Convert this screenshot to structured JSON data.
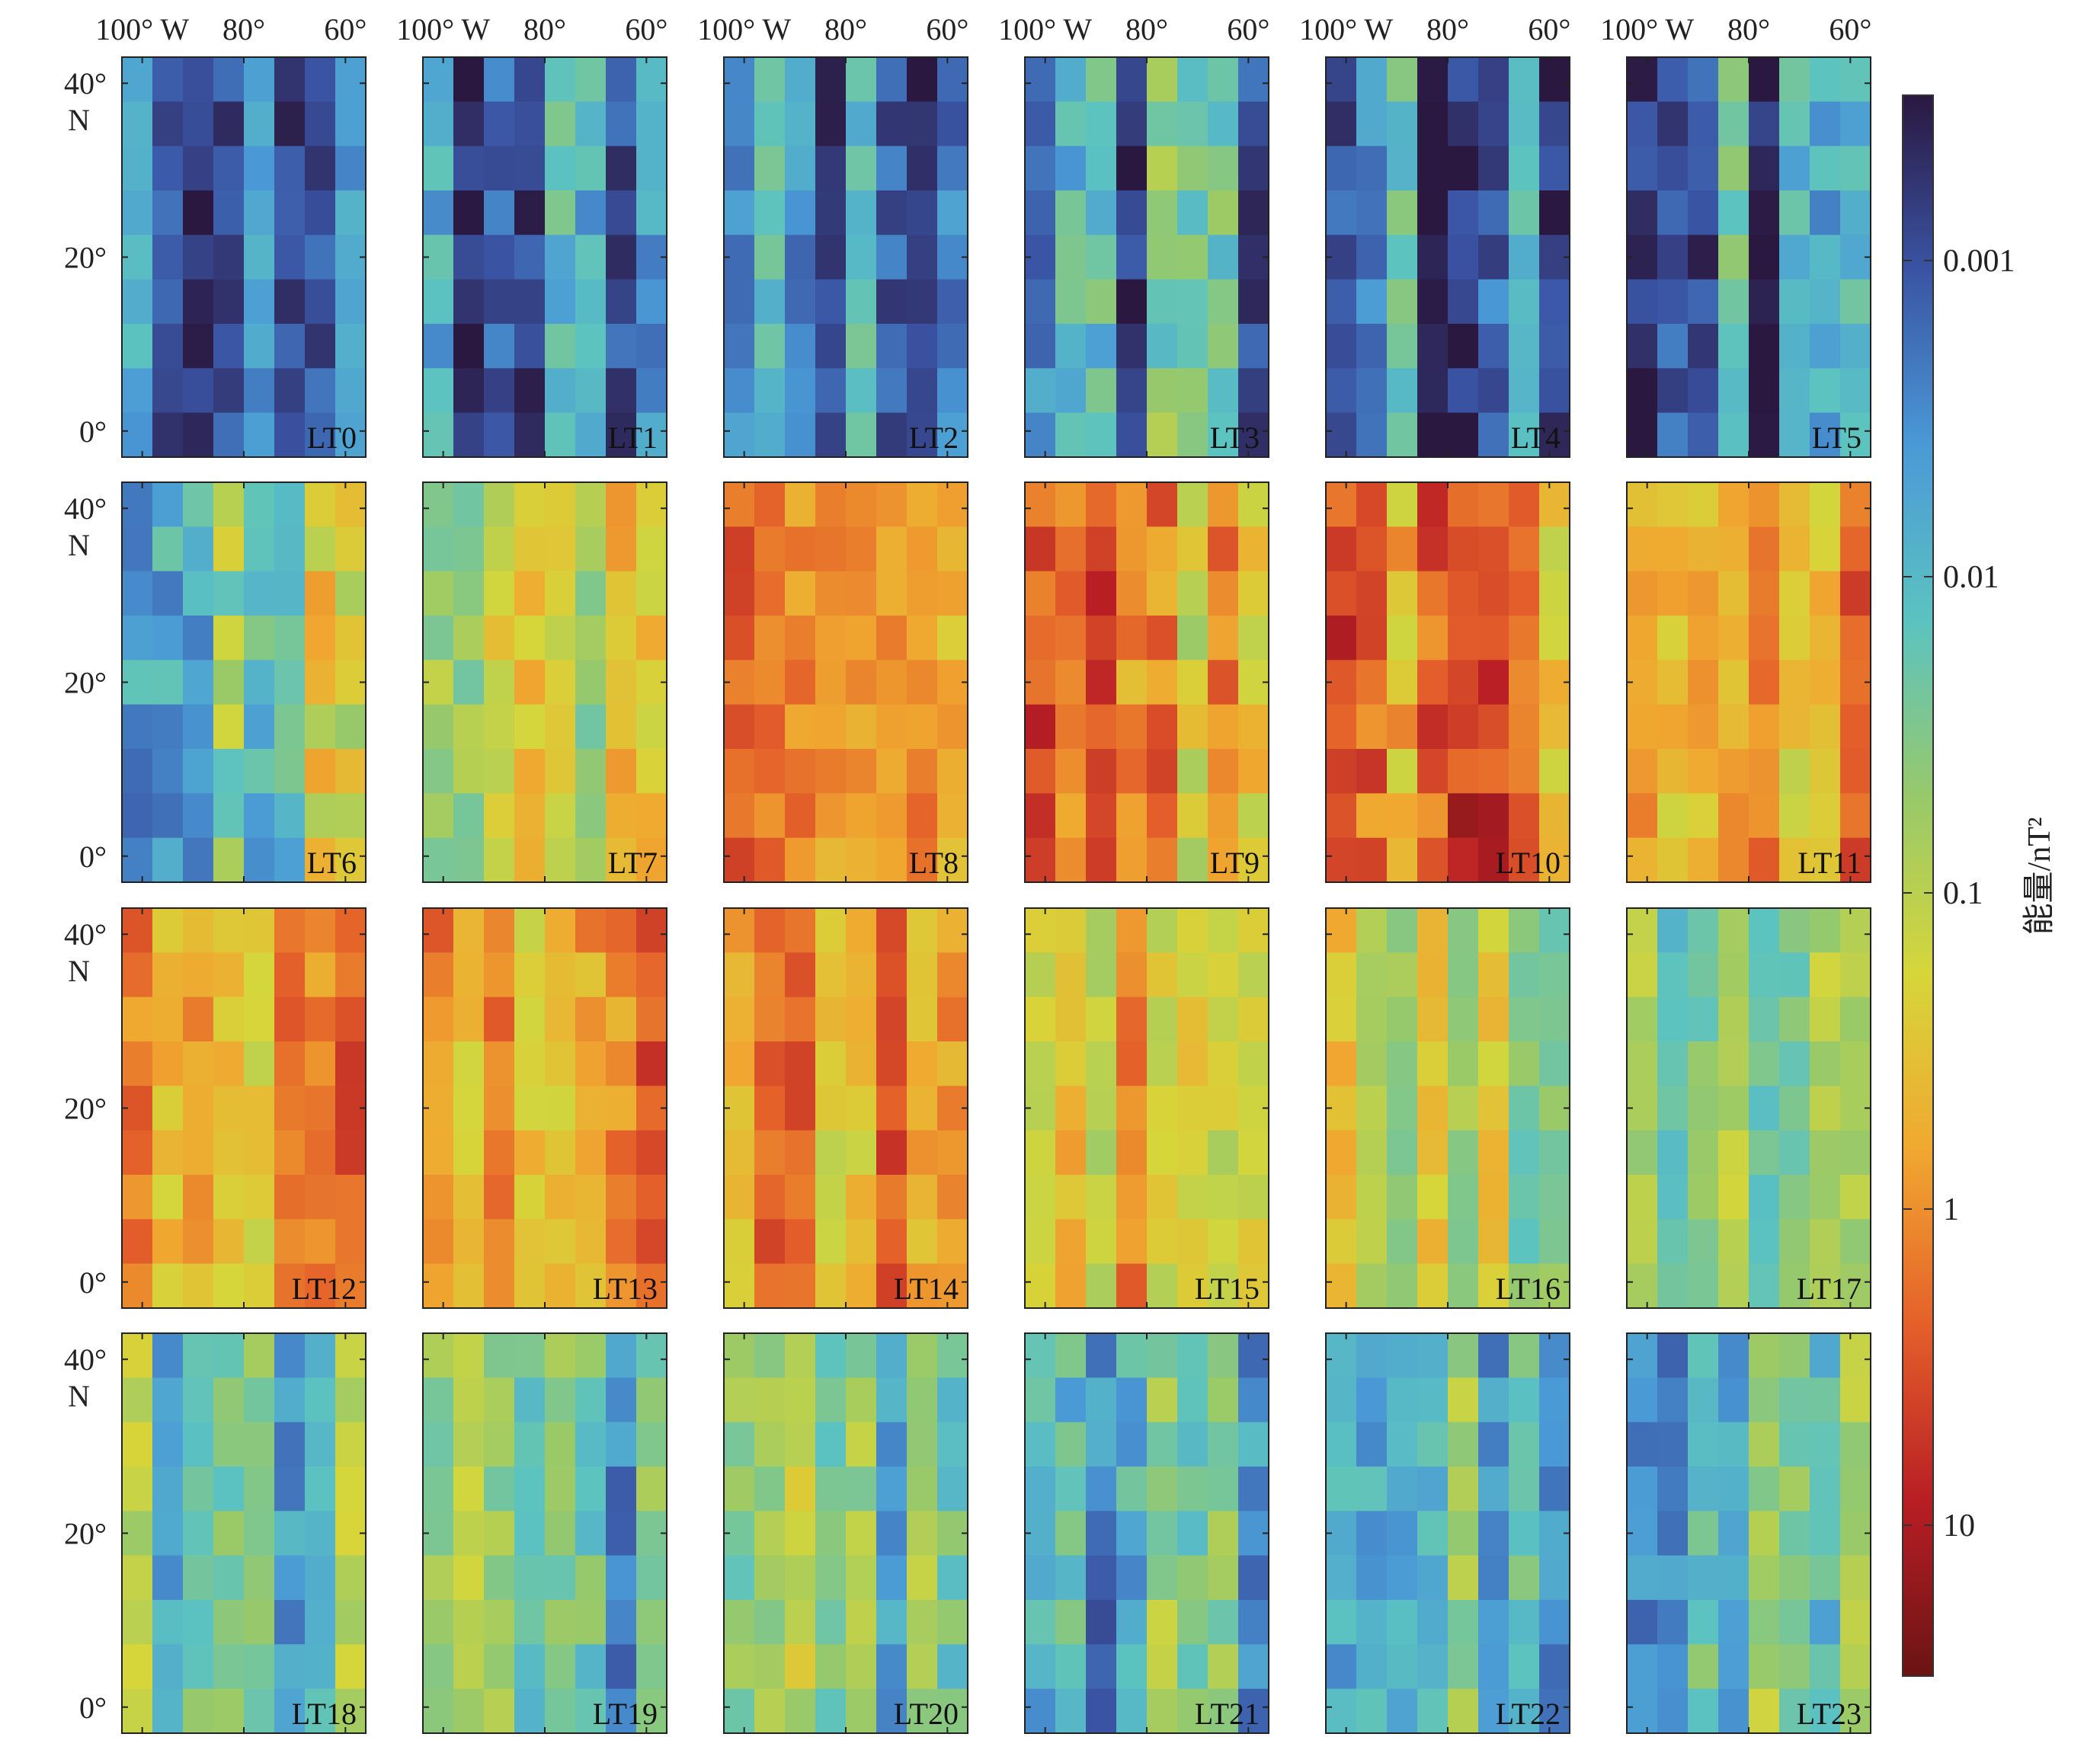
{
  "chart_data": {
    "type": "heatmap",
    "title": "",
    "colorbar_label": "能量/nT²",
    "colorbar_scale": "log",
    "colorbar_ticks": [
      "0.001",
      "0.01",
      "0.1",
      "1",
      "10"
    ],
    "colorbar_range": [
      0.0003,
      30
    ],
    "x_tick_labels": [
      "100° W",
      "80°",
      "60°"
    ],
    "y_tick_labels": [
      "40°",
      "N",
      "20°",
      "0°"
    ],
    "xlim": [
      -104,
      -56
    ],
    "ylim": [
      -3,
      43
    ],
    "cell_size_deg": {
      "lon": 6,
      "lat": 5
    },
    "grid_cols": 8,
    "grid_rows": 9,
    "panel_layout": {
      "rows": 4,
      "cols": 6
    },
    "palette": [
      "#2a1840",
      "#3a54a4",
      "#4a9ad6",
      "#5cc3c0",
      "#98c96a",
      "#d6d63a",
      "#f0a830",
      "#e4602a",
      "#b81e24",
      "#6a1414"
    ],
    "panels": [
      {
        "label": "LT0",
        "base": 0.002,
        "spread": 0.7,
        "seed": 11
      },
      {
        "label": "LT1",
        "base": 0.003,
        "spread": 0.9,
        "seed": 12
      },
      {
        "label": "LT2",
        "base": 0.003,
        "spread": 0.8,
        "seed": 13
      },
      {
        "label": "LT3",
        "base": 0.004,
        "spread": 1.0,
        "seed": 14
      },
      {
        "label": "LT4",
        "base": 0.003,
        "spread": 0.8,
        "seed": 15
      },
      {
        "label": "LT5",
        "base": 0.003,
        "spread": 0.9,
        "seed": 16
      },
      {
        "label": "LT6",
        "base": 0.02,
        "spread": 1.2,
        "seed": 21
      },
      {
        "label": "LT7",
        "base": 0.2,
        "spread": 0.7,
        "seed": 22
      },
      {
        "label": "LT8",
        "base": 0.6,
        "spread": 0.7,
        "seed": 23
      },
      {
        "label": "LT9",
        "base": 0.9,
        "spread": 1.0,
        "seed": 24
      },
      {
        "label": "LT10",
        "base": 2.5,
        "spread": 1.0,
        "seed": 25
      },
      {
        "label": "LT11",
        "base": 0.8,
        "spread": 0.7,
        "seed": 26
      },
      {
        "label": "LT12",
        "base": 0.9,
        "spread": 0.7,
        "seed": 31
      },
      {
        "label": "LT13",
        "base": 1.4,
        "spread": 0.8,
        "seed": 32
      },
      {
        "label": "LT14",
        "base": 0.9,
        "spread": 0.7,
        "seed": 33
      },
      {
        "label": "LT15",
        "base": 0.35,
        "spread": 0.6,
        "seed": 34
      },
      {
        "label": "LT16",
        "base": 0.1,
        "spread": 0.6,
        "seed": 35
      },
      {
        "label": "LT17",
        "base": 0.03,
        "spread": 0.6,
        "seed": 36
      },
      {
        "label": "LT18",
        "base": 0.02,
        "spread": 0.8,
        "seed": 41
      },
      {
        "label": "LT19",
        "base": 0.015,
        "spread": 0.8,
        "seed": 42
      },
      {
        "label": "LT20",
        "base": 0.02,
        "spread": 0.8,
        "seed": 43
      },
      {
        "label": "LT21",
        "base": 0.01,
        "spread": 1.0,
        "seed": 44
      },
      {
        "label": "LT22",
        "base": 0.012,
        "spread": 0.8,
        "seed": 45
      },
      {
        "label": "LT23",
        "base": 0.012,
        "spread": 0.8,
        "seed": 46
      }
    ]
  }
}
